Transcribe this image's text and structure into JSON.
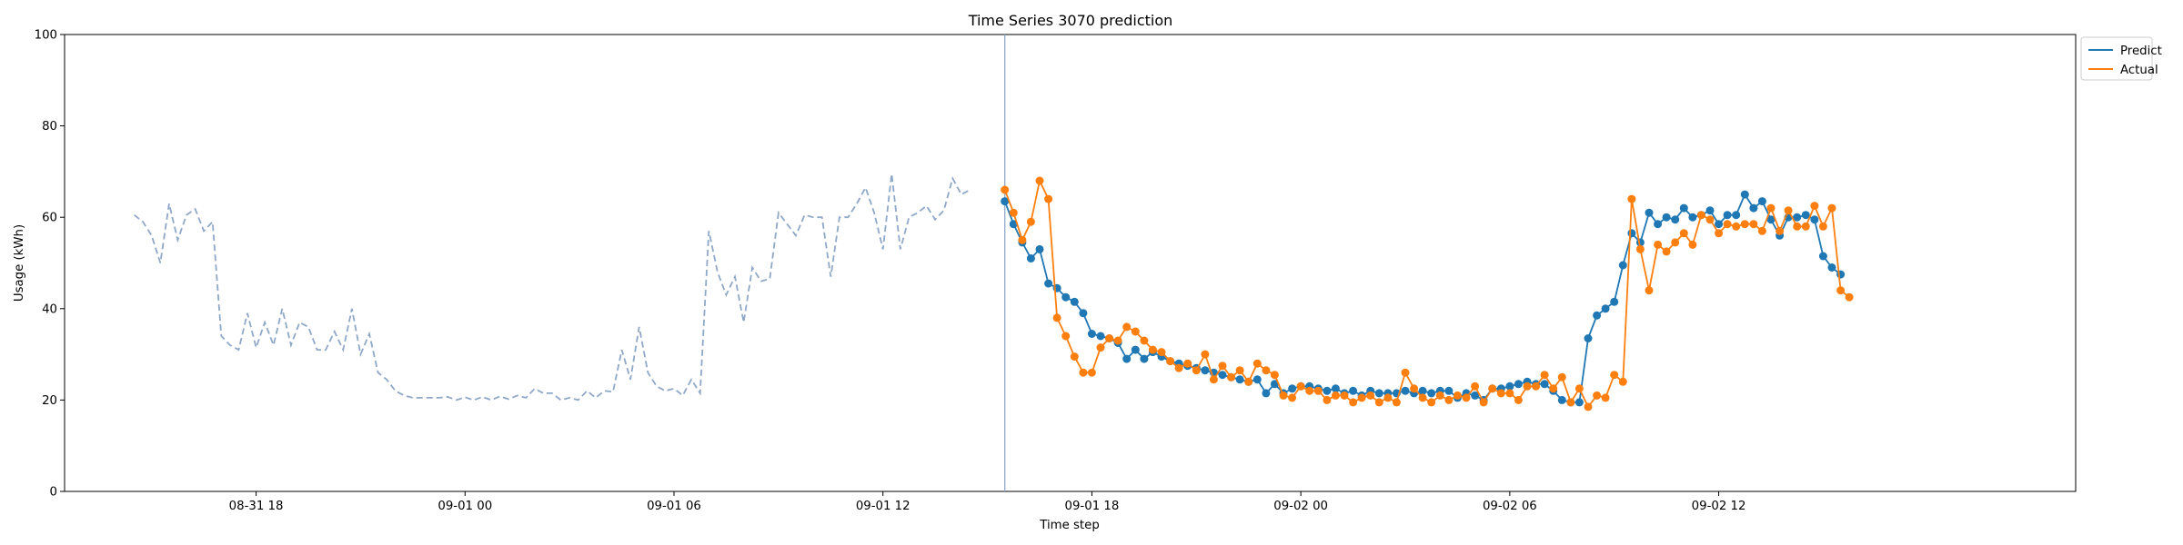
{
  "chart_data": {
    "type": "line",
    "title": "Time Series 3070 prediction",
    "xlabel": "Time step",
    "ylabel": "Usage (kWh)",
    "ylim": [
      0,
      100
    ],
    "yticks": [
      0,
      20,
      40,
      60,
      80,
      100
    ],
    "xlim": [
      "2024-08-31 12:30",
      "2024-09-02 22:15"
    ],
    "xticks": [
      {
        "t": "2024-08-31 18:00",
        "label": "08-31 18"
      },
      {
        "t": "2024-09-01 00:00",
        "label": "09-01 00"
      },
      {
        "t": "2024-09-01 06:00",
        "label": "09-01 06"
      },
      {
        "t": "2024-09-01 12:00",
        "label": "09-01 12"
      },
      {
        "t": "2024-09-01 18:00",
        "label": "09-01 18"
      },
      {
        "t": "2024-09-02 00:00",
        "label": "09-02 00"
      },
      {
        "t": "2024-09-02 06:00",
        "label": "09-02 06"
      },
      {
        "t": "2024-09-02 12:00",
        "label": "09-02 12"
      }
    ],
    "grid": false,
    "legend": "top-right, outside plot",
    "colors": {
      "predict": "#1f77b4",
      "actual": "#ff7f0e",
      "history": "#8fa8c8",
      "forecast_line": "#8fa8c8"
    },
    "forecast_start": "2024-09-01 15:30",
    "interval_minutes": 15,
    "history": {
      "start": "2024-08-31 14:30",
      "values": [
        60.5,
        59,
        56,
        50,
        63,
        55,
        60.5,
        61.8,
        57,
        59,
        34,
        32,
        31,
        39,
        31.5,
        37,
        32,
        40,
        32,
        37,
        36,
        31,
        31,
        35,
        31,
        40,
        30,
        34.5,
        26,
        24.5,
        22,
        21,
        20.5,
        20.5,
        20.5,
        20.5,
        20.7,
        20,
        20.6,
        20,
        20.7,
        20,
        20.8,
        20.2,
        21,
        20.5,
        22.5,
        21.5,
        21.5,
        20,
        20.5,
        20,
        22,
        20.5,
        22,
        21.8,
        31,
        24.5,
        36,
        26,
        23,
        22,
        22.5,
        21,
        24.5,
        21.5,
        57,
        48,
        43,
        47,
        37,
        49,
        46,
        46.5,
        61,
        58.5,
        56,
        60.5,
        60,
        60,
        47,
        60,
        60,
        63,
        66.5,
        61,
        53,
        69.5,
        53,
        60,
        61,
        62.5,
        59.5,
        61.5,
        68.5,
        65,
        66
      ]
    },
    "series": [
      {
        "name": "Predict",
        "start": "2024-09-01 15:30",
        "values": [
          63.5,
          58.5,
          54.5,
          51,
          53,
          45.5,
          44.5,
          42.5,
          41.5,
          39,
          34.5,
          34,
          33.5,
          32.5,
          29,
          31,
          29,
          30.5,
          29.5,
          28.5,
          28,
          27.5,
          27,
          26.5,
          26,
          25.5,
          25,
          24.5,
          24,
          24.5,
          21.5,
          23.5,
          21.5,
          22.5,
          23,
          23,
          22.5,
          22,
          22.5,
          21.5,
          22,
          21,
          22,
          21.5,
          21.5,
          21.5,
          22,
          21.5,
          22,
          21.5,
          22,
          22,
          20.5,
          21.5,
          21,
          20,
          22.5,
          22.5,
          23,
          23.5,
          24,
          23.5,
          23.5,
          22,
          20,
          19.5,
          19.5,
          33.5,
          38.5,
          40,
          41.5,
          49.5,
          56.5,
          54.5,
          61,
          58.5,
          60,
          59.5,
          62,
          60,
          60.5,
          61.5,
          58.5,
          60.5,
          60.5,
          65,
          62,
          63.5,
          59.5,
          56,
          60,
          60,
          60.5,
          59.5,
          51.5,
          49,
          47.5
        ]
      },
      {
        "name": "Actual",
        "start": "2024-09-01 15:30",
        "values": [
          66,
          61,
          55,
          59,
          68,
          64,
          38,
          34,
          29.5,
          26,
          26,
          31.5,
          33.5,
          33,
          36,
          35,
          33,
          31,
          30.5,
          28.5,
          27,
          28,
          26.5,
          30,
          24.5,
          27.5,
          25,
          26.5,
          24,
          28,
          26.5,
          25.5,
          21,
          20.5,
          23,
          22,
          22,
          20,
          21,
          21,
          19.5,
          20.5,
          21,
          19.5,
          20.5,
          19.5,
          26,
          22.5,
          20.5,
          19.5,
          21,
          20,
          21,
          20.5,
          23,
          19.5,
          22.5,
          21.5,
          21.5,
          20,
          23,
          23,
          25.5,
          22.5,
          25,
          19.5,
          22.5,
          18.5,
          21,
          20.5,
          25.5,
          24,
          64,
          53,
          44,
          54,
          52.5,
          54.5,
          56.5,
          54,
          60.5,
          59.5,
          56.5,
          58.5,
          58,
          58.5,
          58.5,
          57,
          62,
          57,
          61.5,
          58,
          58,
          62.5,
          58,
          62,
          44,
          42.5
        ]
      }
    ]
  }
}
